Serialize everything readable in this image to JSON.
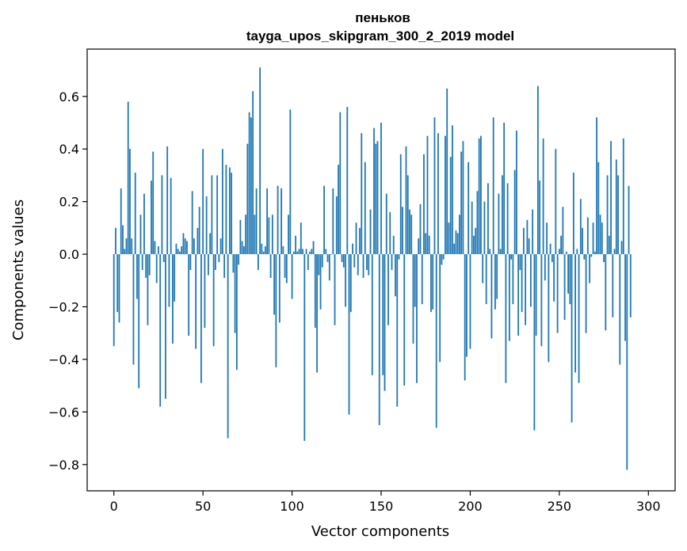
{
  "chart_data": {
    "type": "bar",
    "title_line1": "пеньков",
    "title_line2": "tayga_upos_skipgram_300_2_2019 model",
    "xlabel": "Vector components",
    "ylabel": "Components values",
    "xlim": [
      -15,
      315
    ],
    "ylim": [
      -0.9,
      0.78
    ],
    "xticks": [
      0,
      50,
      100,
      150,
      200,
      250,
      300
    ],
    "xtick_labels": [
      "0",
      "50",
      "100",
      "150",
      "200",
      "250",
      "300"
    ],
    "yticks": [
      -0.8,
      -0.6,
      -0.4,
      -0.2,
      0.0,
      0.2,
      0.4,
      0.6
    ],
    "ytick_labels": [
      "−0.8",
      "−0.6",
      "−0.4",
      "−0.2",
      "0.0",
      "0.2",
      "0.4",
      "0.6"
    ],
    "bar_color": "#1f77b4",
    "values": [
      -0.35,
      0.1,
      -0.22,
      -0.26,
      0.25,
      0.11,
      0.02,
      0.06,
      0.58,
      0.4,
      0.06,
      -0.42,
      0.31,
      -0.17,
      -0.51,
      0.15,
      -0.06,
      0.23,
      -0.09,
      -0.27,
      -0.08,
      0.28,
      0.39,
      0.05,
      -0.11,
      0.03,
      -0.58,
      0.3,
      -0.03,
      -0.55,
      0.41,
      -0.2,
      0.29,
      -0.34,
      -0.18,
      0.04,
      0.02,
      0.01,
      0.03,
      0.08,
      0.06,
      0.05,
      -0.31,
      -0.06,
      0.24,
      0.06,
      -0.36,
      0.1,
      0.18,
      -0.49,
      0.4,
      -0.28,
      0.22,
      -0.08,
      0.08,
      0.3,
      -0.35,
      -0.06,
      0.3,
      -0.03,
      0.06,
      0.4,
      -0.09,
      0.34,
      -0.7,
      0.33,
      0.31,
      -0.07,
      -0.3,
      -0.44,
      -0.04,
      0.13,
      0.05,
      0.03,
      0.15,
      0.42,
      0.54,
      0.52,
      0.62,
      0.15,
      0.25,
      -0.06,
      0.71,
      0.04,
      0.01,
      0.03,
      0.25,
      0.14,
      -0.09,
      0.15,
      -0.23,
      -0.43,
      0.26,
      -0.26,
      0.25,
      0.03,
      -0.09,
      -0.11,
      0.15,
      0.55,
      -0.17,
      0.01,
      0.07,
      0.01,
      0.02,
      0.12,
      0.02,
      -0.71,
      0.02,
      -0.06,
      0.01,
      0.02,
      0.05,
      -0.28,
      -0.45,
      -0.08,
      -0.21,
      -0.05,
      0.26,
      0.02,
      -0.03,
      -0.1,
      0.0,
      0.25,
      -0.27,
      0.22,
      0.34,
      0.54,
      -0.03,
      -0.05,
      -0.2,
      0.56,
      -0.61,
      -0.22,
      0.04,
      -0.05,
      0.12,
      -0.08,
      0.1,
      0.46,
      -0.09,
      0.35,
      -0.06,
      -0.08,
      0.17,
      -0.46,
      0.48,
      0.42,
      0.43,
      -0.65,
      0.5,
      -0.46,
      -0.52,
      0.23,
      -0.27,
      0.16,
      -0.06,
      0.07,
      -0.16,
      -0.58,
      -0.02,
      0.38,
      0.18,
      -0.5,
      0.41,
      0.3,
      0.17,
      0.15,
      -0.34,
      -0.2,
      -0.49,
      0.06,
      0.19,
      -0.19,
      0.38,
      0.08,
      0.45,
      0.07,
      -0.22,
      -0.21,
      0.52,
      -0.66,
      0.46,
      -0.41,
      -0.04,
      -0.02,
      0.45,
      0.63,
      0.12,
      0.37,
      0.49,
      0.04,
      0.09,
      0.08,
      0.15,
      0.39,
      0.43,
      -0.48,
      -0.39,
      0.35,
      -0.36,
      0.2,
      0.07,
      0.1,
      0.24,
      0.44,
      0.45,
      -0.11,
      0.2,
      -0.19,
      0.27,
      0.02,
      -0.32,
      0.52,
      -0.21,
      -0.17,
      0.23,
      0.02,
      0.3,
      0.5,
      -0.49,
      0.27,
      -0.33,
      -0.02,
      -0.19,
      0.32,
      0.47,
      -0.31,
      -0.06,
      -0.22,
      0.1,
      -0.27,
      0.13,
      0.06,
      -0.2,
      0.17,
      -0.67,
      -0.31,
      0.64,
      0.28,
      -0.35,
      0.44,
      -0.1,
      0.12,
      -0.41,
      0.04,
      -0.03,
      -0.18,
      0.4,
      -0.3,
      0.02,
      0.07,
      0.18,
      -0.25,
      0.01,
      -0.15,
      -0.19,
      -0.64,
      0.31,
      -0.45,
      0.02,
      -0.49,
      0.21,
      0.1,
      -0.02,
      -0.3,
      0.14,
      -0.11,
      -0.01,
      0.12,
      0.01,
      0.52,
      0.35,
      0.15,
      0.12,
      -0.03,
      -0.29,
      0.3,
      0.07,
      0.43,
      -0.24,
      0.02,
      0.36,
      0.3,
      -0.42,
      0.05,
      0.44,
      -0.33,
      -0.82,
      0.26,
      -0.24
    ]
  }
}
